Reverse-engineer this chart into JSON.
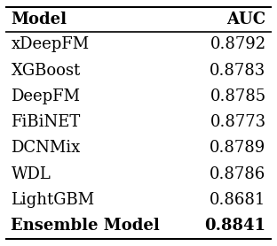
{
  "columns": [
    "Model",
    "AUC"
  ],
  "rows": [
    [
      "xDeepFM",
      "0.8792"
    ],
    [
      "XGBoost",
      "0.8783"
    ],
    [
      "DeepFM",
      "0.8785"
    ],
    [
      "FiBiNET",
      "0.8773"
    ],
    [
      "DCNMix",
      "0.8789"
    ],
    [
      "WDL",
      "0.8786"
    ],
    [
      "LightGBM",
      "0.8681"
    ],
    [
      "Ensemble Model",
      "0.8841"
    ]
  ],
  "bold_rows": [
    7
  ],
  "header_bold": true,
  "background_color": "#ffffff",
  "text_color": "#000000",
  "figsize": [
    3.12,
    2.78
  ],
  "dpi": 100
}
